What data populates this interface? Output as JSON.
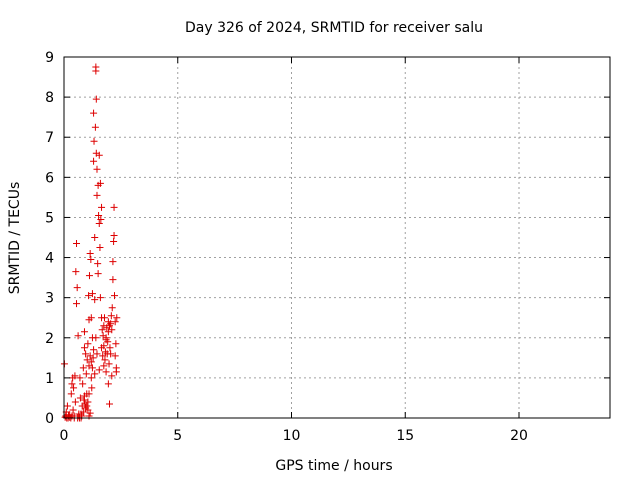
{
  "chart_data": {
    "type": "scatter",
    "title": "Day 326 of 2024, SRMTID for receiver salu",
    "xlabel": "GPS time / hours",
    "ylabel": "SRMTID / TECUs",
    "xlim": [
      0,
      24
    ],
    "ylim": [
      0,
      9
    ],
    "xticks": [
      "0",
      "5",
      "10",
      "15",
      "20"
    ],
    "yticks": [
      "0",
      "1",
      "2",
      "3",
      "4",
      "5",
      "6",
      "7",
      "8",
      "9"
    ],
    "grid": true,
    "marker": "plus",
    "color": "#dd0000",
    "points": [
      [
        0.02,
        1.35
      ],
      [
        0.05,
        0.02
      ],
      [
        0.08,
        0.05
      ],
      [
        0.1,
        0.15
      ],
      [
        0.12,
        0.0
      ],
      [
        0.15,
        0.3
      ],
      [
        0.18,
        0.0
      ],
      [
        0.2,
        0.05
      ],
      [
        0.25,
        0.08
      ],
      [
        0.3,
        0.0
      ],
      [
        0.32,
        0.6
      ],
      [
        0.35,
        0.85
      ],
      [
        0.38,
        1.0
      ],
      [
        0.4,
        0.2
      ],
      [
        0.42,
        0.75
      ],
      [
        0.45,
        0.05
      ],
      [
        0.48,
        1.05
      ],
      [
        0.5,
        0.4
      ],
      [
        0.52,
        3.65
      ],
      [
        0.55,
        4.35
      ],
      [
        0.55,
        2.85
      ],
      [
        0.58,
        3.25
      ],
      [
        0.6,
        0.0
      ],
      [
        0.62,
        2.05
      ],
      [
        0.65,
        0.1
      ],
      [
        0.68,
        0.0
      ],
      [
        0.7,
        1.0
      ],
      [
        0.72,
        0.5
      ],
      [
        0.75,
        0.0
      ],
      [
        0.78,
        0.05
      ],
      [
        0.8,
        0.3
      ],
      [
        0.82,
        0.85
      ],
      [
        0.85,
        1.25
      ],
      [
        0.88,
        0.45
      ],
      [
        0.9,
        1.75
      ],
      [
        0.9,
        2.15
      ],
      [
        0.92,
        0.35
      ],
      [
        0.95,
        1.6
      ],
      [
        0.98,
        1.1
      ],
      [
        1.0,
        0.6
      ],
      [
        1.02,
        1.45
      ],
      [
        1.05,
        0.2
      ],
      [
        1.05,
        1.85
      ],
      [
        1.08,
        3.05
      ],
      [
        1.1,
        2.45
      ],
      [
        1.1,
        0.05
      ],
      [
        1.12,
        3.55
      ],
      [
        1.15,
        1.55
      ],
      [
        1.15,
        4.1
      ],
      [
        1.18,
        3.95
      ],
      [
        1.2,
        2.5
      ],
      [
        1.2,
        1.0
      ],
      [
        1.22,
        0.75
      ],
      [
        1.25,
        2.0
      ],
      [
        1.25,
        3.1
      ],
      [
        1.28,
        1.5
      ],
      [
        1.3,
        6.4
      ],
      [
        1.3,
        7.6
      ],
      [
        1.32,
        6.9
      ],
      [
        1.35,
        4.5
      ],
      [
        1.35,
        2.95
      ],
      [
        1.38,
        7.25
      ],
      [
        1.4,
        8.65
      ],
      [
        1.4,
        8.75
      ],
      [
        1.42,
        7.95
      ],
      [
        1.42,
        6.6
      ],
      [
        1.45,
        6.2
      ],
      [
        1.45,
        5.55
      ],
      [
        1.48,
        3.85
      ],
      [
        1.5,
        5.8
      ],
      [
        1.5,
        3.6
      ],
      [
        1.52,
        5.05
      ],
      [
        1.55,
        6.55
      ],
      [
        1.55,
        4.85
      ],
      [
        1.58,
        4.25
      ],
      [
        1.6,
        5.85
      ],
      [
        1.6,
        3.0
      ],
      [
        1.62,
        4.95
      ],
      [
        1.65,
        5.25
      ],
      [
        1.65,
        2.5
      ],
      [
        1.68,
        2.2
      ],
      [
        1.7,
        1.55
      ],
      [
        1.72,
        2.05
      ],
      [
        1.75,
        1.8
      ],
      [
        1.75,
        1.3
      ],
      [
        1.78,
        2.5
      ],
      [
        1.8,
        1.45
      ],
      [
        1.82,
        1.65
      ],
      [
        1.85,
        1.95
      ],
      [
        1.85,
        1.15
      ],
      [
        1.88,
        2.25
      ],
      [
        1.9,
        1.6
      ],
      [
        1.92,
        1.9
      ],
      [
        1.95,
        0.85
      ],
      [
        1.95,
        2.15
      ],
      [
        1.98,
        1.35
      ],
      [
        2.0,
        2.3
      ],
      [
        2.0,
        0.35
      ],
      [
        2.02,
        1.75
      ],
      [
        2.05,
        2.35
      ],
      [
        2.08,
        2.55
      ],
      [
        2.1,
        2.2
      ],
      [
        2.1,
        1.05
      ],
      [
        2.12,
        2.75
      ],
      [
        2.15,
        3.45
      ],
      [
        2.15,
        3.9
      ],
      [
        2.18,
        4.4
      ],
      [
        2.2,
        4.55
      ],
      [
        2.2,
        5.25
      ],
      [
        2.22,
        3.05
      ],
      [
        2.25,
        2.4
      ],
      [
        2.25,
        1.55
      ],
      [
        2.28,
        1.85
      ],
      [
        2.3,
        1.25
      ],
      [
        2.3,
        1.15
      ],
      [
        2.32,
        2.5
      ],
      [
        1.0,
        0.3
      ],
      [
        1.05,
        0.4
      ],
      [
        0.95,
        0.25
      ],
      [
        1.1,
        1.3
      ],
      [
        1.25,
        1.25
      ],
      [
        1.35,
        1.1
      ],
      [
        1.45,
        1.6
      ],
      [
        1.55,
        1.2
      ],
      [
        1.65,
        1.75
      ],
      [
        1.75,
        2.3
      ],
      [
        1.85,
        2.0
      ],
      [
        1.95,
        2.4
      ],
      [
        2.05,
        1.6
      ],
      [
        1.4,
        2.0
      ],
      [
        1.3,
        1.7
      ],
      [
        1.2,
        1.4
      ],
      [
        0.9,
        0.55
      ],
      [
        0.85,
        0.15
      ],
      [
        0.75,
        0.1
      ],
      [
        0.65,
        0.05
      ],
      [
        0.45,
        0.0
      ],
      [
        0.35,
        0.05
      ],
      [
        0.25,
        0.02
      ],
      [
        1.15,
        0.12
      ],
      [
        1.1,
        0.6
      ]
    ]
  }
}
